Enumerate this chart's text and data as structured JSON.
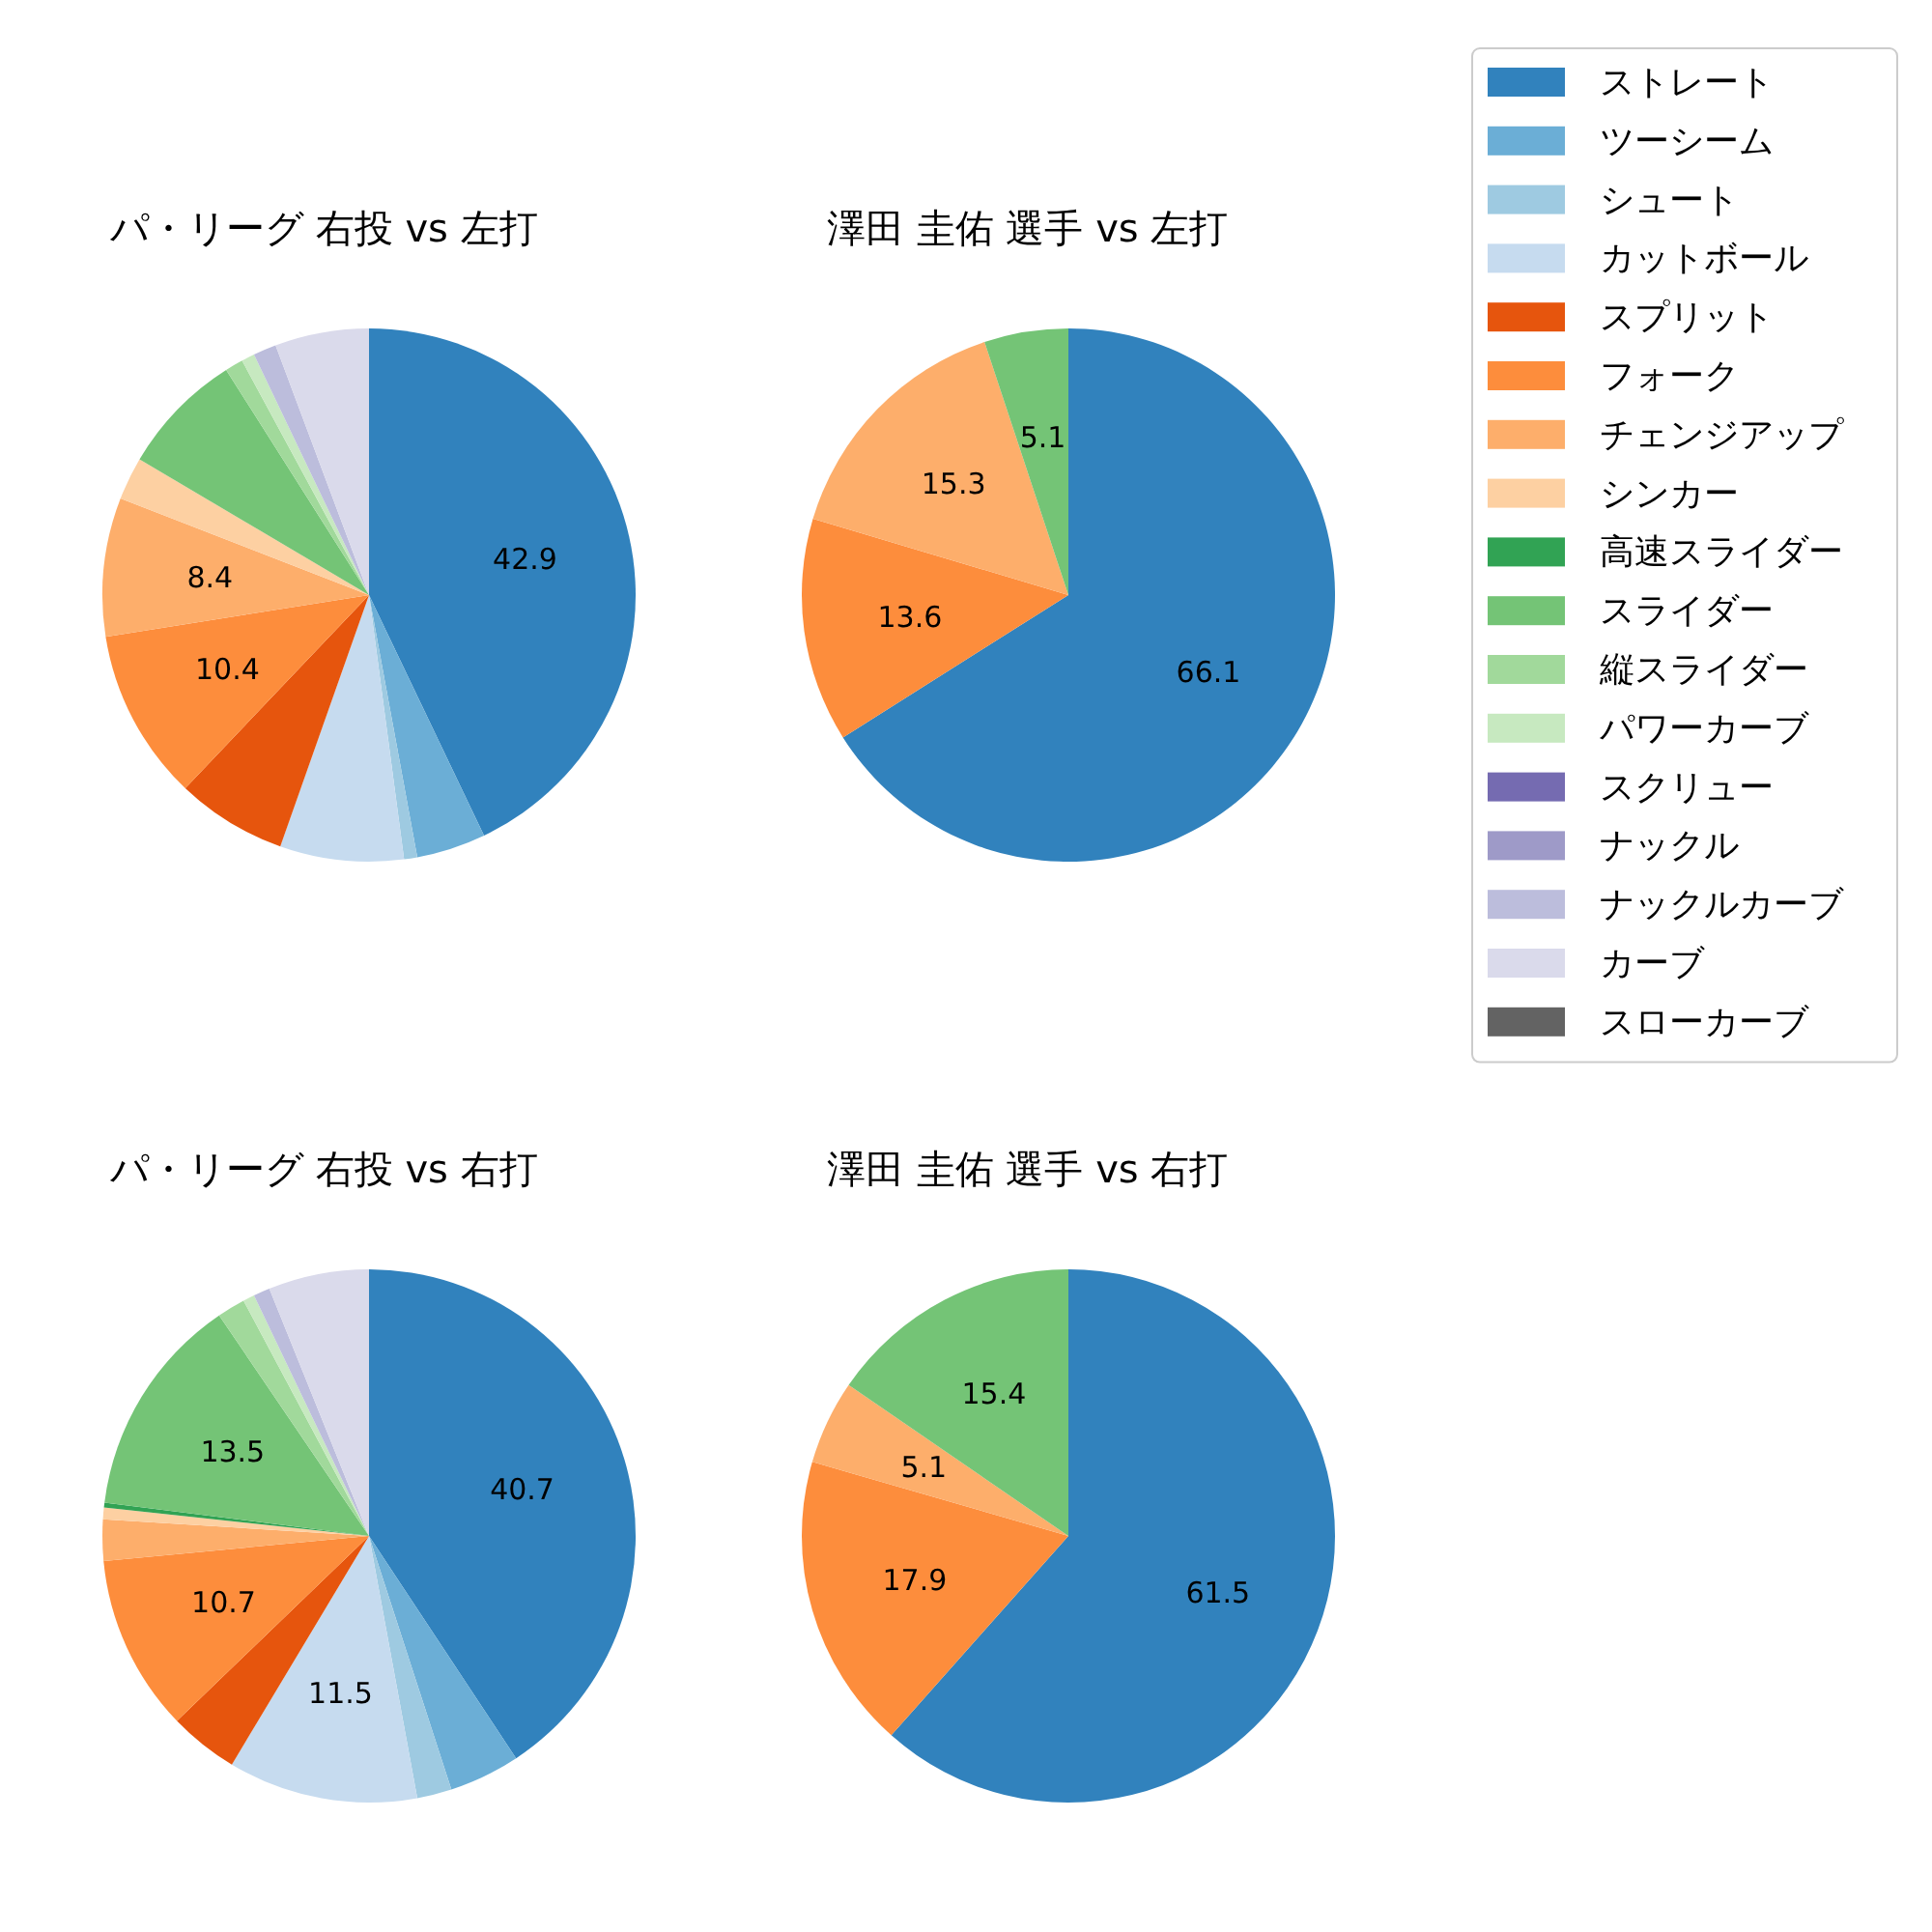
{
  "chart_data": [
    {
      "type": "pie",
      "title": "パ・リーグ 右投 vs 左打",
      "legend": "right",
      "categories": [
        "ストレート",
        "ツーシーム",
        "シュート",
        "カットボール",
        "スプリット",
        "フォーク",
        "チェンジアップ",
        "シンカー",
        "高速スライダー",
        "スライダー",
        "縦スライダー",
        "パワーカーブ",
        "スクリュー",
        "ナックル",
        "ナックルカーブ",
        "カーブ",
        "スローカーブ"
      ],
      "values": [
        42.9,
        4.2,
        0.8,
        7.5,
        6.7,
        10.4,
        8.4,
        2.6,
        0,
        7.5,
        1.1,
        0.8,
        0,
        0,
        1.4,
        5.7,
        0
      ],
      "value_labels": [
        "42.9",
        null,
        null,
        null,
        null,
        "10.4",
        "8.4",
        null,
        null,
        null,
        null,
        null,
        null,
        null,
        null,
        null,
        null
      ],
      "colors": [
        "#3182bd",
        "#6baed6",
        "#9ecae1",
        "#c6dbef",
        "#e6550d",
        "#fd8d3c",
        "#fdae6b",
        "#fdd0a2",
        "#31a354",
        "#74c476",
        "#a1d99b",
        "#c7e9c0",
        "#756bb1",
        "#9e9ac8",
        "#bcbddc",
        "#dadaeb",
        "#636363"
      ]
    },
    {
      "type": "pie",
      "title": "澤田 圭佑 選手 vs 左打",
      "categories": [
        null,
        null,
        null,
        null
      ],
      "values": [
        66.1,
        13.6,
        15.3,
        5.1
      ],
      "data_labels": true,
      "colors": [
        "#3182bd",
        "#fd8d3c",
        "#fdae6b",
        "#74c476"
      ]
    },
    {
      "type": "pie",
      "title": "パ・リーグ 右投 vs 右打",
      "categories": [
        null,
        null,
        null,
        null,
        null,
        null,
        null,
        null,
        null,
        null,
        null,
        null,
        null,
        null
      ],
      "values": [
        40.7,
        4.3,
        2.1,
        11.5,
        4.2,
        10.7,
        2.5,
        0.7,
        0.3,
        13.5,
        1.7,
        0.7,
        1.0,
        6.1
      ],
      "value_labels": [
        "40.7",
        null,
        null,
        "11.5",
        null,
        "10.7",
        null,
        null,
        null,
        "13.5",
        null,
        null,
        null,
        null
      ],
      "colors": [
        "#3182bd",
        "#6baed6",
        "#9ecae1",
        "#c6dbef",
        "#e6550d",
        "#fd8d3c",
        "#fdae6b",
        "#fdd0a2",
        "#31a354",
        "#74c476",
        "#a1d99b",
        "#c7e9c0",
        "#bcbddc",
        "#dadaeb"
      ]
    },
    {
      "type": "pie",
      "title": "澤田 圭佑 選手 vs 右打",
      "categories": [
        null,
        null,
        null,
        null
      ],
      "values": [
        61.5,
        17.9,
        5.1,
        15.4
      ],
      "data_labels": true,
      "colors": [
        "#3182bd",
        "#fd8d3c",
        "#fdae6b",
        "#74c476"
      ]
    }
  ]
}
